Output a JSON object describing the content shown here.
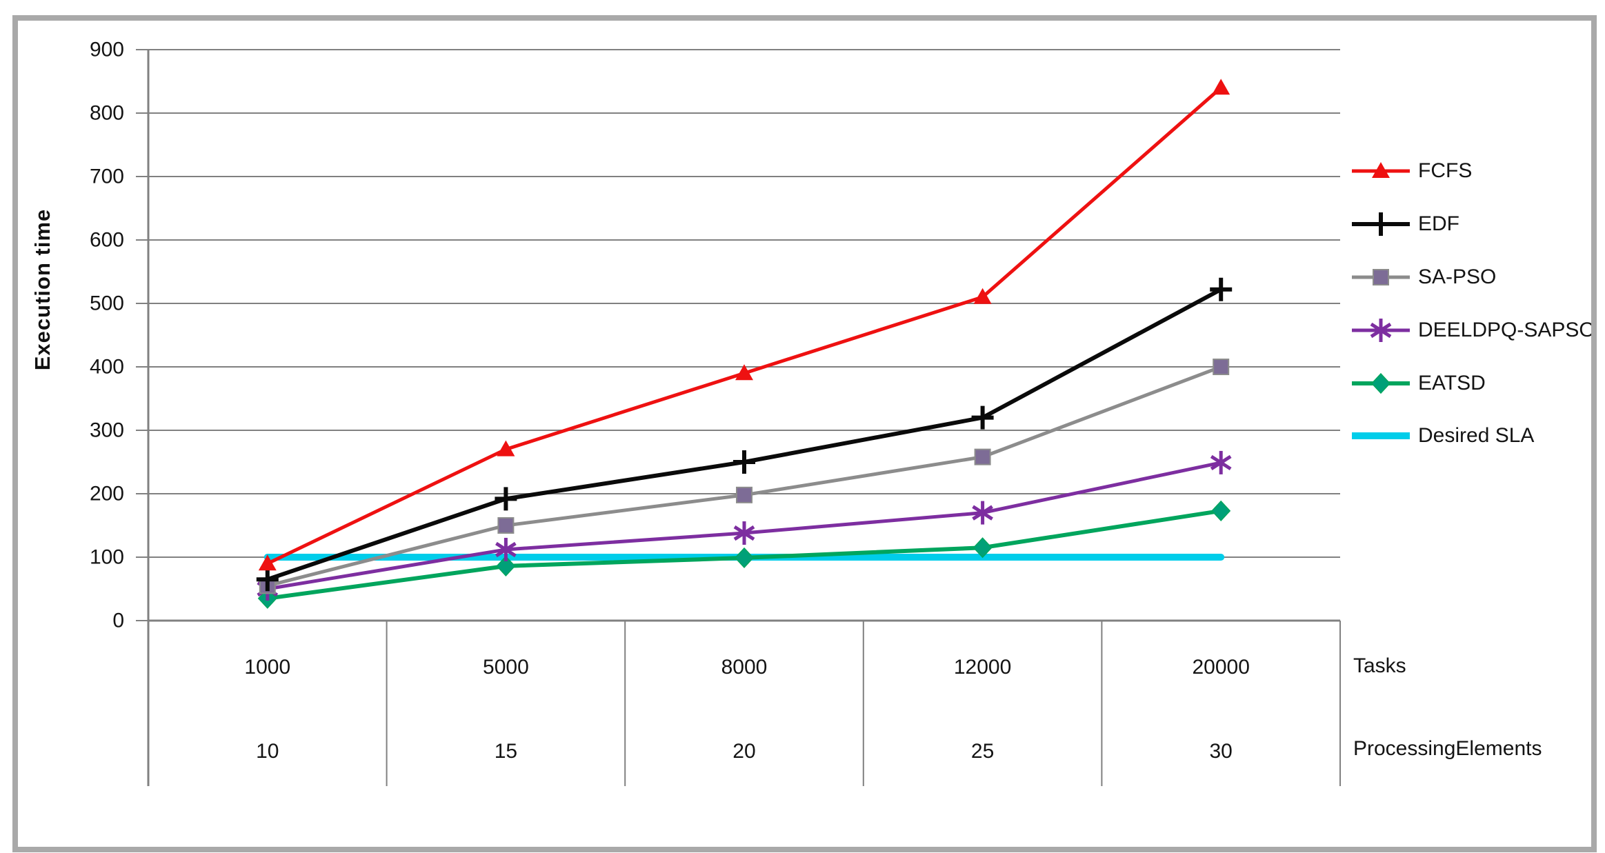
{
  "figure": {
    "background": "#ffffff",
    "frame_color": "#a9a9a9",
    "grid_color": "#808080",
    "axis_color": "#808080",
    "text_color": "#141414"
  },
  "chart_data": {
    "type": "line",
    "title": "",
    "ylabel": "Execution time",
    "grid": true,
    "legend_position": "right",
    "y_axis": {
      "min": 0,
      "max": 900,
      "step": 100,
      "tick_labels": [
        "0",
        "100",
        "200",
        "300",
        "400",
        "500",
        "600",
        "700",
        "800",
        "900"
      ]
    },
    "categories": [
      1000,
      5000,
      8000,
      12000,
      20000
    ],
    "x_rows": [
      {
        "name": "Tasks",
        "values": [
          "1000",
          "5000",
          "8000",
          "12000",
          "20000"
        ]
      },
      {
        "name": "ProcessingElements",
        "values": [
          "10",
          "15",
          "20",
          "25",
          "30"
        ]
      }
    ],
    "series": [
      {
        "name": "FCFS",
        "color": "#ee1111",
        "marker": "triangle",
        "marker_fill": "#ee1111",
        "width": 5,
        "values": [
          90,
          270,
          390,
          510,
          840
        ]
      },
      {
        "name": "EDF",
        "color": "#0a0a0a",
        "marker": "plus",
        "marker_fill": "#0a0a0a",
        "width": 6,
        "values": [
          65,
          192,
          250,
          320,
          522
        ]
      },
      {
        "name": "SA-PSO",
        "color": "#8c8c8c",
        "marker": "square",
        "marker_fill": "#7d6c96",
        "width": 5,
        "values": [
          55,
          150,
          198,
          258,
          400
        ]
      },
      {
        "name": "DEELDPQ-SAPSO",
        "color": "#7d2ea0",
        "marker": "asterisk",
        "marker_fill": "#7d2ea0",
        "width": 5,
        "values": [
          50,
          112,
          138,
          170,
          249
        ]
      },
      {
        "name": "EATSD",
        "color": "#00a55d",
        "marker": "diamond",
        "marker_fill": "#00a078",
        "width": 6,
        "values": [
          35,
          86,
          99,
          115,
          173
        ]
      },
      {
        "name": "Desired SLA",
        "color": "#00cdea",
        "marker": "none",
        "marker_fill": "#00cdea",
        "width": 10,
        "values": [
          100,
          100,
          100,
          100,
          100
        ]
      }
    ]
  }
}
